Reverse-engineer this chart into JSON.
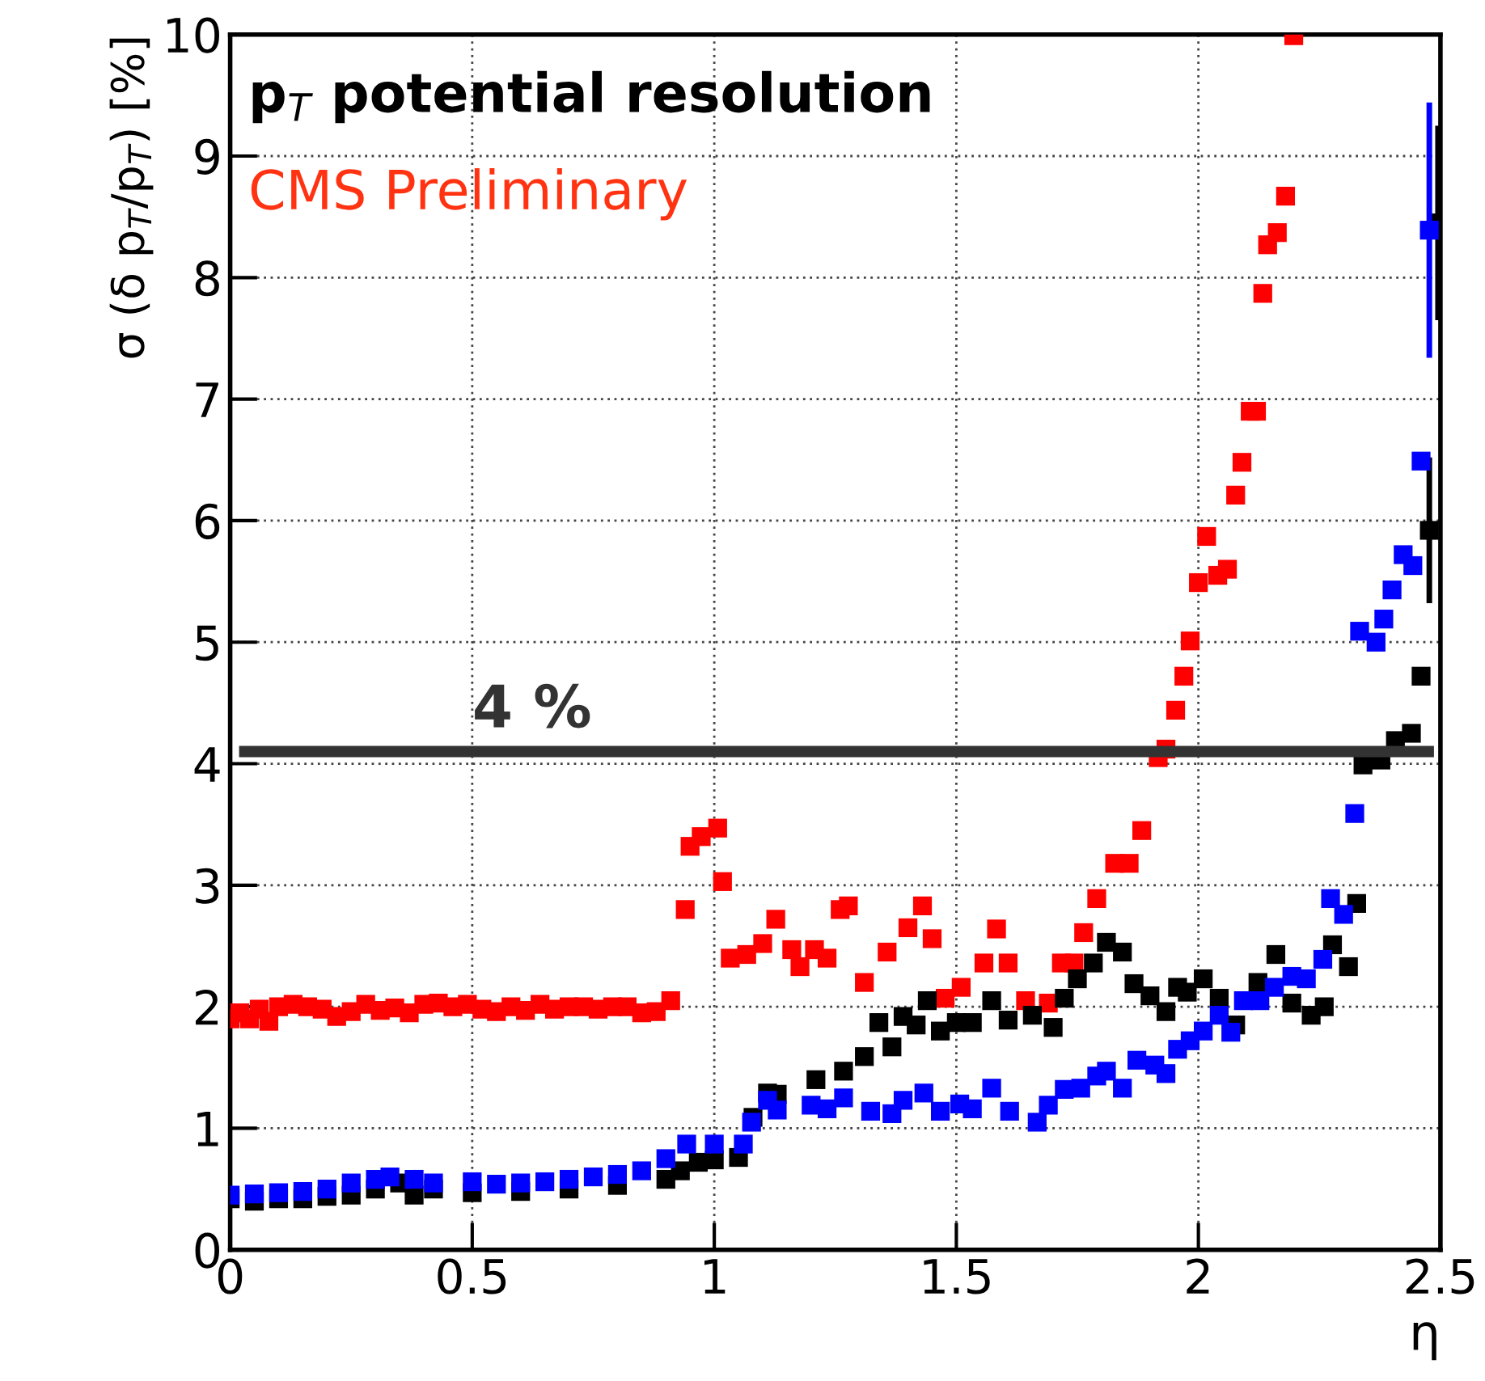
{
  "chart_data": {
    "type": "scatter",
    "title": "p$_{T}$ potential resolution",
    "xlabel": "η",
    "ylabel": "σ (δ p$_{T}$/p$_{T}$) [%]",
    "annotations": [
      "CMS Preliminary"
    ],
    "xlim": [
      0,
      2.5
    ],
    "ylim": [
      0,
      10
    ],
    "xticks": [
      0,
      0.5,
      1,
      1.5,
      2,
      2.5
    ],
    "yticks": [
      0,
      1,
      2,
      3,
      4,
      5,
      6,
      7,
      8,
      9,
      10
    ],
    "grid": true,
    "marker": "square",
    "ref_lines": [
      {
        "axis": "y",
        "value": 4.1,
        "label": "4 %",
        "color": "#333333"
      }
    ],
    "series": [
      {
        "color": "#ff0000",
        "x": [
          0,
          0.02,
          0.04,
          0.06,
          0.08,
          0.1,
          0.13,
          0.16,
          0.19,
          0.22,
          0.25,
          0.28,
          0.31,
          0.34,
          0.37,
          0.4,
          0.43,
          0.46,
          0.49,
          0.52,
          0.55,
          0.58,
          0.61,
          0.64,
          0.67,
          0.7,
          0.73,
          0.76,
          0.79,
          0.82,
          0.85,
          0.88,
          0.91,
          0.94,
          0.95,
          0.973,
          1.007,
          1.017,
          1.033,
          1.067,
          1.1,
          1.127,
          1.16,
          1.177,
          1.207,
          1.233,
          1.26,
          1.277,
          1.31,
          1.357,
          1.4,
          1.43,
          1.45,
          1.477,
          1.51,
          1.557,
          1.583,
          1.607,
          1.643,
          1.69,
          1.717,
          1.743,
          1.763,
          1.79,
          1.827,
          1.857,
          1.883,
          1.917,
          1.933,
          1.953,
          1.97,
          1.983,
          2.0,
          2.017,
          2.04,
          2.06,
          2.077,
          2.09,
          2.107,
          2.12,
          2.133,
          2.143,
          2.163,
          2.18,
          2.197
        ],
        "values": [
          1.9,
          1.95,
          1.9,
          1.98,
          1.88,
          2.0,
          2.02,
          2.0,
          1.98,
          1.92,
          1.96,
          2.02,
          1.97,
          1.99,
          1.95,
          2.02,
          2.03,
          2.0,
          2.02,
          1.98,
          1.96,
          2.0,
          1.97,
          2.02,
          1.98,
          2.0,
          2.0,
          1.98,
          2.0,
          2.0,
          1.95,
          1.96,
          2.05,
          2.8,
          3.32,
          3.4,
          3.47,
          3.03,
          2.4,
          2.43,
          2.52,
          2.72,
          2.47,
          2.33,
          2.47,
          2.4,
          2.8,
          2.83,
          2.2,
          2.45,
          2.65,
          2.83,
          2.56,
          2.07,
          2.16,
          2.36,
          2.64,
          2.36,
          2.05,
          2.03,
          2.36,
          2.36,
          2.61,
          2.89,
          3.18,
          3.18,
          3.45,
          4.05,
          4.12,
          4.44,
          4.72,
          5.01,
          5.49,
          5.87,
          5.55,
          5.6,
          6.21,
          6.48,
          6.9,
          6.9,
          7.87,
          8.27,
          8.37,
          8.67,
          9.99
        ]
      },
      {
        "color": "#000000",
        "x": [
          0,
          0.05,
          0.1,
          0.15,
          0.2,
          0.25,
          0.3,
          0.35,
          0.38,
          0.42,
          0.5,
          0.6,
          0.7,
          0.8,
          0.9,
          0.93,
          0.967,
          1.0,
          1.05,
          1.08,
          1.11,
          1.13,
          1.21,
          1.267,
          1.31,
          1.34,
          1.367,
          1.39,
          1.417,
          1.44,
          1.467,
          1.5,
          1.533,
          1.573,
          1.607,
          1.657,
          1.7,
          1.723,
          1.75,
          1.783,
          1.81,
          1.843,
          1.867,
          1.9,
          1.933,
          1.957,
          1.977,
          2.01,
          2.043,
          2.077,
          2.123,
          2.16,
          2.193,
          2.233,
          2.26,
          2.277,
          2.31,
          2.327,
          2.34,
          2.377,
          2.407,
          2.44,
          2.46,
          2.477,
          2.495
        ],
        "values": [
          0.42,
          0.4,
          0.42,
          0.42,
          0.44,
          0.45,
          0.5,
          0.55,
          0.45,
          0.5,
          0.47,
          0.48,
          0.5,
          0.53,
          0.58,
          0.65,
          0.72,
          0.74,
          0.76,
          1.09,
          1.29,
          1.28,
          1.4,
          1.47,
          1.59,
          1.87,
          1.67,
          1.92,
          1.85,
          2.05,
          1.8,
          1.87,
          1.87,
          2.05,
          1.89,
          1.93,
          1.83,
          2.07,
          2.23,
          2.36,
          2.53,
          2.45,
          2.19,
          2.09,
          1.96,
          2.16,
          2.12,
          2.23,
          2.07,
          1.85,
          2.2,
          2.43,
          2.03,
          1.93,
          2.0,
          2.51,
          2.33,
          2.85,
          3.99,
          4.03,
          4.19,
          4.25,
          4.72,
          5.92,
          8.45
        ],
        "errors": [
          null,
          null,
          null,
          null,
          null,
          null,
          null,
          null,
          null,
          null,
          null,
          null,
          null,
          null,
          null,
          null,
          null,
          null,
          null,
          null,
          null,
          null,
          null,
          null,
          null,
          null,
          null,
          null,
          null,
          null,
          null,
          null,
          null,
          null,
          null,
          null,
          null,
          null,
          null,
          null,
          null,
          null,
          null,
          null,
          null,
          null,
          null,
          null,
          null,
          null,
          null,
          null,
          null,
          null,
          null,
          null,
          null,
          null,
          null,
          null,
          null,
          null,
          null,
          0.6,
          0.8
        ]
      },
      {
        "color": "#0000ff",
        "x": [
          0,
          0.05,
          0.1,
          0.15,
          0.2,
          0.25,
          0.3,
          0.33,
          0.38,
          0.42,
          0.5,
          0.55,
          0.6,
          0.65,
          0.7,
          0.75,
          0.8,
          0.85,
          0.9,
          0.943,
          1.0,
          1.06,
          1.077,
          1.11,
          1.13,
          1.2,
          1.233,
          1.267,
          1.323,
          1.367,
          1.39,
          1.433,
          1.467,
          1.507,
          1.533,
          1.573,
          1.61,
          1.667,
          1.69,
          1.723,
          1.757,
          1.79,
          1.81,
          1.843,
          1.873,
          1.91,
          1.933,
          1.957,
          1.983,
          2.01,
          2.043,
          2.067,
          2.093,
          2.127,
          2.157,
          2.193,
          2.223,
          2.257,
          2.273,
          2.3,
          2.323,
          2.333,
          2.367,
          2.383,
          2.4,
          2.423,
          2.443,
          2.46,
          2.477
        ],
        "values": [
          0.45,
          0.46,
          0.47,
          0.48,
          0.5,
          0.55,
          0.58,
          0.6,
          0.58,
          0.55,
          0.56,
          0.54,
          0.55,
          0.56,
          0.58,
          0.6,
          0.62,
          0.65,
          0.75,
          0.87,
          0.87,
          0.87,
          1.05,
          1.23,
          1.15,
          1.19,
          1.16,
          1.25,
          1.14,
          1.12,
          1.23,
          1.29,
          1.14,
          1.2,
          1.16,
          1.33,
          1.14,
          1.05,
          1.19,
          1.32,
          1.33,
          1.43,
          1.47,
          1.33,
          1.56,
          1.52,
          1.45,
          1.65,
          1.72,
          1.8,
          1.93,
          1.79,
          2.05,
          2.05,
          2.16,
          2.25,
          2.23,
          2.39,
          2.89,
          2.76,
          3.59,
          5.09,
          5.0,
          5.19,
          5.43,
          5.72,
          5.63,
          6.49,
          8.39
        ],
        "errors": [
          null,
          null,
          null,
          null,
          null,
          null,
          null,
          null,
          null,
          null,
          null,
          null,
          null,
          null,
          null,
          null,
          null,
          null,
          null,
          null,
          null,
          null,
          null,
          null,
          null,
          null,
          null,
          null,
          null,
          null,
          null,
          null,
          null,
          null,
          null,
          null,
          null,
          null,
          null,
          null,
          null,
          null,
          null,
          null,
          null,
          null,
          null,
          null,
          null,
          null,
          null,
          null,
          null,
          null,
          null,
          null,
          null,
          null,
          null,
          null,
          null,
          null,
          null,
          null,
          null,
          null,
          null,
          null,
          1.05
        ]
      }
    ]
  }
}
